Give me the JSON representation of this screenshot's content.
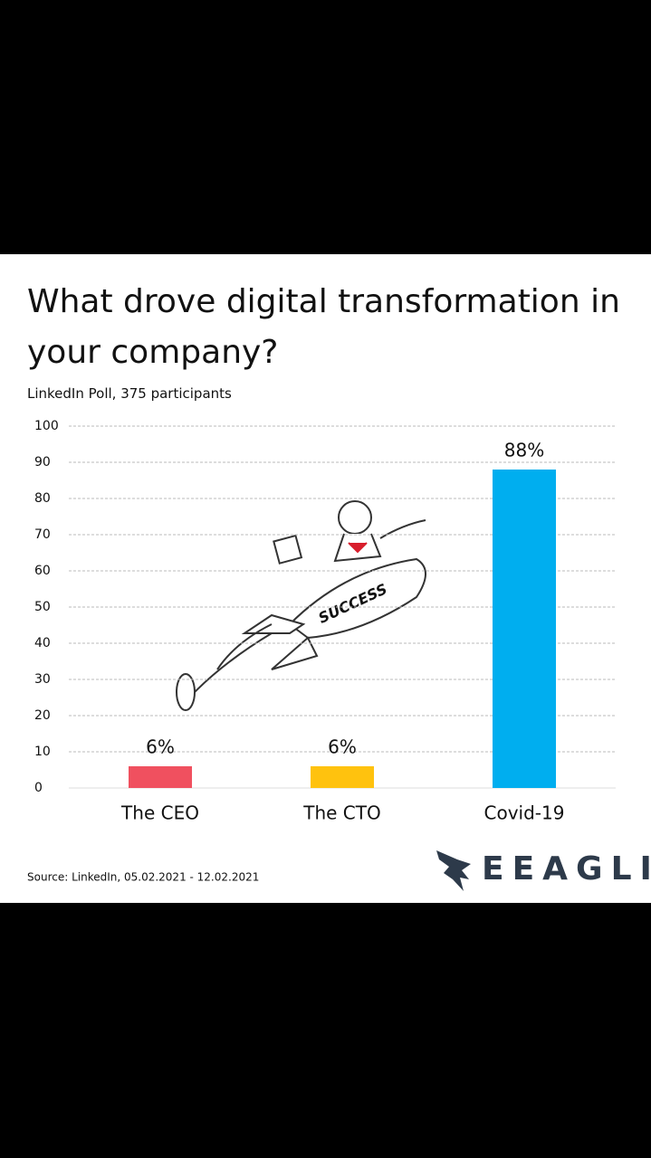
{
  "chart_data": {
    "type": "bar",
    "title": "What drove digital transformation in your company?",
    "subtitle": "LinkedIn Poll, 375 participants",
    "categories": [
      "The CEO",
      "The CTO",
      "Covid-19"
    ],
    "values": [
      6,
      6,
      88
    ],
    "value_labels": [
      "6%",
      "6%",
      "88%"
    ],
    "colors": [
      "#f0505f",
      "#ffc20e",
      "#00aeef"
    ],
    "ylim": [
      0,
      100
    ],
    "yticks": [
      0,
      10,
      20,
      30,
      40,
      50,
      60,
      70,
      80,
      90,
      100
    ],
    "grid": true,
    "source": "Source: LinkedIn, 05.02.2021 - 12.02.2021",
    "brand": "EEAGLI"
  }
}
